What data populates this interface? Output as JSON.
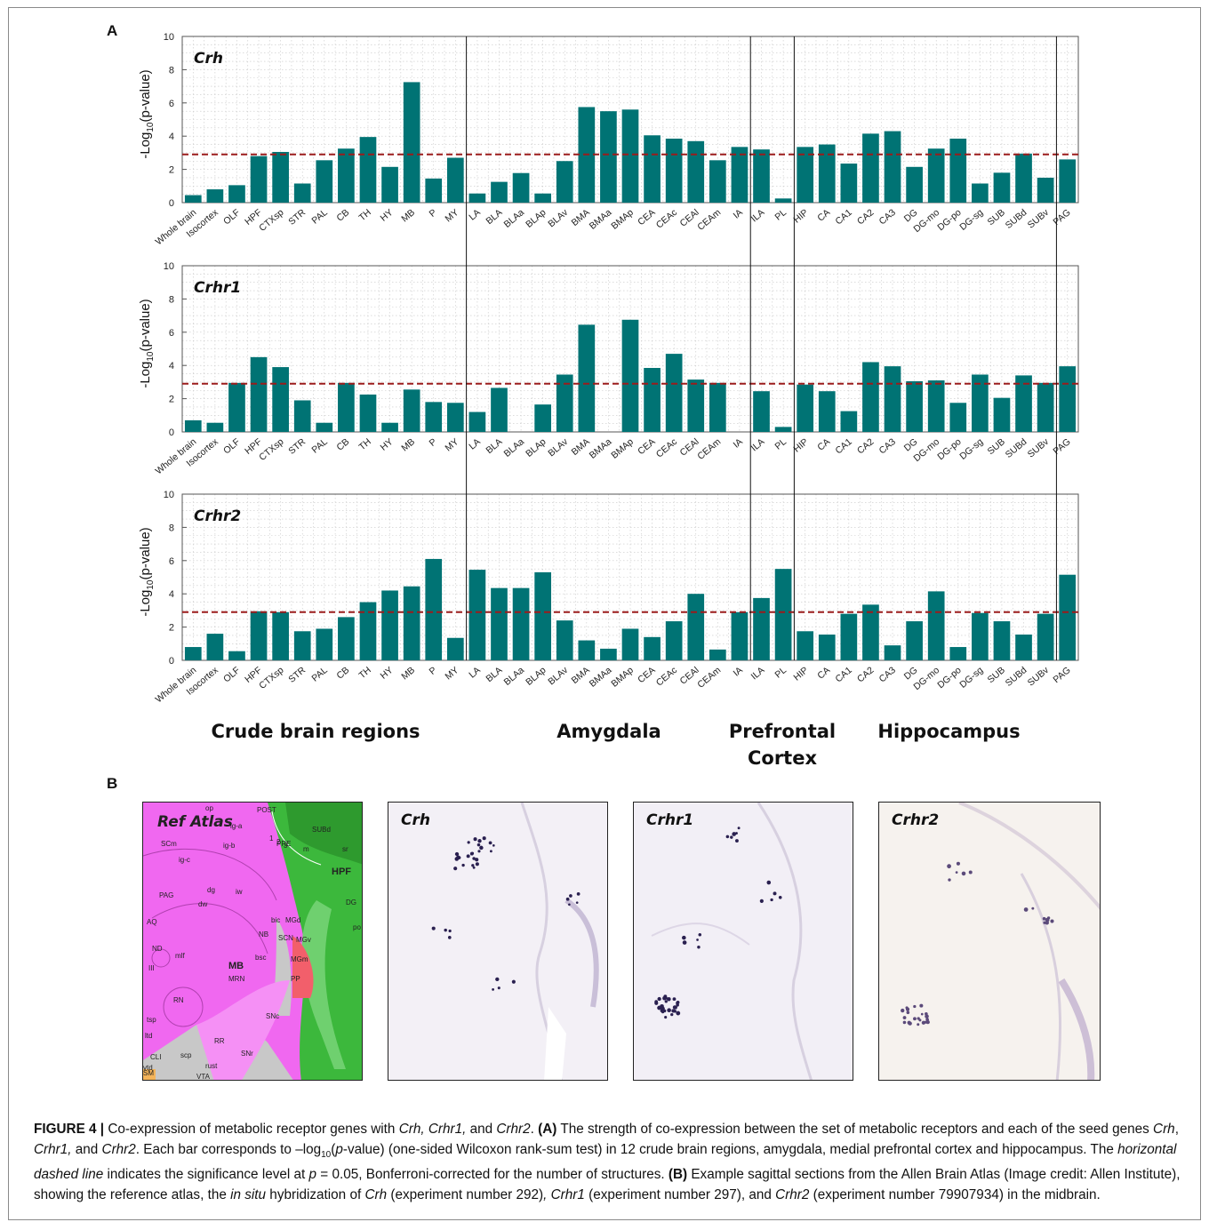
{
  "panel_labels": {
    "a": "A",
    "b": "B"
  },
  "colors": {
    "bar": "#007374",
    "threshold": "#9b1c1c",
    "grid": "#c8c8c8"
  },
  "threshold": 2.9,
  "region_labels": [
    "Crude brain regions",
    "Amygdala",
    "Prefrontal\nCortex",
    "Hippocampus"
  ],
  "chart_data": [
    {
      "type": "bar",
      "gene": "Crh",
      "ylabel": "-Log10(p-value)",
      "ylim": [
        0,
        10
      ],
      "yticks": [
        0,
        2,
        4,
        6,
        8,
        10
      ],
      "grid": true,
      "categories": [
        "Whole brain",
        "Isocortex",
        "OLF",
        "HPF",
        "CTXsp",
        "STR",
        "PAL",
        "CB",
        "TH",
        "HY",
        "MB",
        "P",
        "MY",
        "LA",
        "BLA",
        "BLAa",
        "BLAp",
        "BLAv",
        "BMA",
        "BMAa",
        "BMAp",
        "CEA",
        "CEAc",
        "CEAl",
        "CEAm",
        "IA",
        "ILA",
        "PL",
        "HIP",
        "CA",
        "CA1",
        "CA2",
        "CA3",
        "DG",
        "DG-mo",
        "DG-po",
        "DG-sg",
        "SUB",
        "SUBd",
        "SUBv",
        "PAG"
      ],
      "values": [
        0.45,
        0.8,
        1.05,
        2.8,
        3.05,
        1.15,
        2.55,
        3.25,
        3.95,
        2.15,
        7.25,
        1.45,
        2.7,
        0.55,
        1.25,
        1.78,
        0.55,
        2.5,
        5.75,
        5.5,
        5.6,
        4.05,
        3.85,
        3.7,
        2.55,
        3.35,
        3.2,
        0.25,
        3.35,
        3.5,
        2.35,
        4.15,
        4.3,
        2.15,
        3.25,
        3.85,
        1.15,
        1.8,
        2.95,
        1.5,
        2.6
      ]
    },
    {
      "type": "bar",
      "gene": "Crhr1",
      "ylabel": "-Log10(p-value)",
      "ylim": [
        0,
        10
      ],
      "yticks": [
        0,
        2,
        4,
        6,
        8,
        10
      ],
      "grid": true,
      "categories": [
        "Whole brain",
        "Isocortex",
        "OLF",
        "HPF",
        "CTXsp",
        "STR",
        "PAL",
        "CB",
        "TH",
        "HY",
        "MB",
        "P",
        "MY",
        "LA",
        "BLA",
        "BLAa",
        "BLAp",
        "BLAv",
        "BMA",
        "BMAa",
        "BMAp",
        "CEA",
        "CEAc",
        "CEAl",
        "CEAm",
        "IA",
        "ILA",
        "PL",
        "HIP",
        "CA",
        "CA1",
        "CA2",
        "CA3",
        "DG",
        "DG-mo",
        "DG-po",
        "DG-sg",
        "SUB",
        "SUBd",
        "SUBv",
        "PAG"
      ],
      "values": [
        0.7,
        0.55,
        2.95,
        4.5,
        3.9,
        1.9,
        0.55,
        2.95,
        2.25,
        0.55,
        2.55,
        1.8,
        1.75,
        1.2,
        2.65,
        0,
        1.65,
        3.45,
        6.45,
        0,
        6.75,
        3.85,
        4.7,
        3.15,
        2.95,
        0,
        2.45,
        0.3,
        2.85,
        2.45,
        1.25,
        4.2,
        3.95,
        3.05,
        3.1,
        1.75,
        3.45,
        2.05,
        3.4,
        2.95,
        3.95
      ]
    },
    {
      "type": "bar",
      "gene": "Crhr2",
      "ylabel": "-Log10(p-value)",
      "ylim": [
        0,
        10
      ],
      "yticks": [
        0,
        2,
        4,
        6,
        8,
        10
      ],
      "grid": true,
      "categories": [
        "Whole brain",
        "Isocortex",
        "OLF",
        "HPF",
        "CTXsp",
        "STR",
        "PAL",
        "CB",
        "TH",
        "HY",
        "MB",
        "P",
        "MY",
        "LA",
        "BLA",
        "BLAa",
        "BLAp",
        "BLAv",
        "BMA",
        "BMAa",
        "BMAp",
        "CEA",
        "CEAc",
        "CEAl",
        "CEAm",
        "IA",
        "ILA",
        "PL",
        "HIP",
        "CA",
        "CA1",
        "CA2",
        "CA3",
        "DG",
        "DG-mo",
        "DG-po",
        "DG-sg",
        "SUB",
        "SUBd",
        "SUBv",
        "PAG"
      ],
      "values": [
        0.8,
        1.6,
        0.55,
        2.95,
        2.9,
        1.75,
        1.9,
        2.6,
        3.5,
        4.2,
        4.45,
        6.1,
        1.35,
        5.45,
        4.35,
        4.35,
        5.3,
        2.4,
        1.2,
        0.7,
        1.9,
        1.4,
        2.35,
        4.0,
        0.65,
        2.9,
        3.75,
        5.5,
        1.75,
        1.55,
        2.8,
        3.35,
        0.9,
        2.35,
        4.15,
        0.8,
        2.85,
        2.35,
        1.55,
        2.8,
        5.15
      ]
    }
  ],
  "images": [
    {
      "title": "Ref Atlas",
      "kind": "atlas",
      "labels": [
        "op",
        "POST",
        "SUBd",
        "ig-a",
        "SCm",
        "ig-b",
        "PRE",
        "ig-c",
        "HPF",
        "DG",
        "PAG",
        "dg",
        "iw",
        "dw",
        "AQ",
        "bic",
        "MGd",
        "NB",
        "SCN",
        "MGv",
        "ND",
        "mlf",
        "III",
        "MB",
        "MRN",
        "MGm",
        "PP",
        "RN",
        "tsp",
        "ltd",
        "SNc",
        "CLI",
        "scp",
        "RR",
        "rust",
        "SNr",
        "vtd",
        "SM",
        "VTA",
        "bsc",
        "m",
        "sr",
        "po",
        "1",
        "2",
        "3"
      ]
    },
    {
      "title": "Crh",
      "kind": "ish"
    },
    {
      "title": "Crhr1",
      "kind": "ish"
    },
    {
      "title": "Crhr2",
      "kind": "ish"
    }
  ],
  "caption": {
    "fig": "FIGURE 4 |",
    "s1": " Co-expression of metabolic receptor genes with ",
    "g1": "Crh, Crhr1,",
    "s2": " and ",
    "g2": "Crhr2",
    "s3": ". ",
    "a": "(A)",
    "s4": " The strength of co-expression between the set of metabolic receptors and each of the seed genes ",
    "g3": "Crh",
    "s5": ", ",
    "g4": "Crhr1,",
    "s6": " and ",
    "g5": "Crhr2",
    "s7": ". Each bar corresponds to –log",
    "sub10": "10",
    "s8": "(",
    "p": "p",
    "s9": "-value) (one-sided Wilcoxon rank-sum test) in 12 crude brain regions, amygdala, medial prefrontal cortex and hippocampus. The ",
    "hdl": "horizontal dashed line",
    "s10": " indicates the significance level at ",
    "p2": "p",
    "s11": " = 0.05, Bonferroni-corrected for the number of structures. ",
    "b": "(B)",
    "s12": " Example sagittal sections from the Allen Brain Atlas (Image credit: Allen Institute), showing the reference atlas, the ",
    "insitu": "in situ",
    "s13": " hybridization of ",
    "g6": "Crh",
    "s14": " (experiment number 292)",
    "s15": ", ",
    "g7": "Crhr1",
    "s16": " (experiment number 297), and ",
    "g8": "Crhr2",
    "s17": " (experiment number 79907934) in the midbrain."
  }
}
